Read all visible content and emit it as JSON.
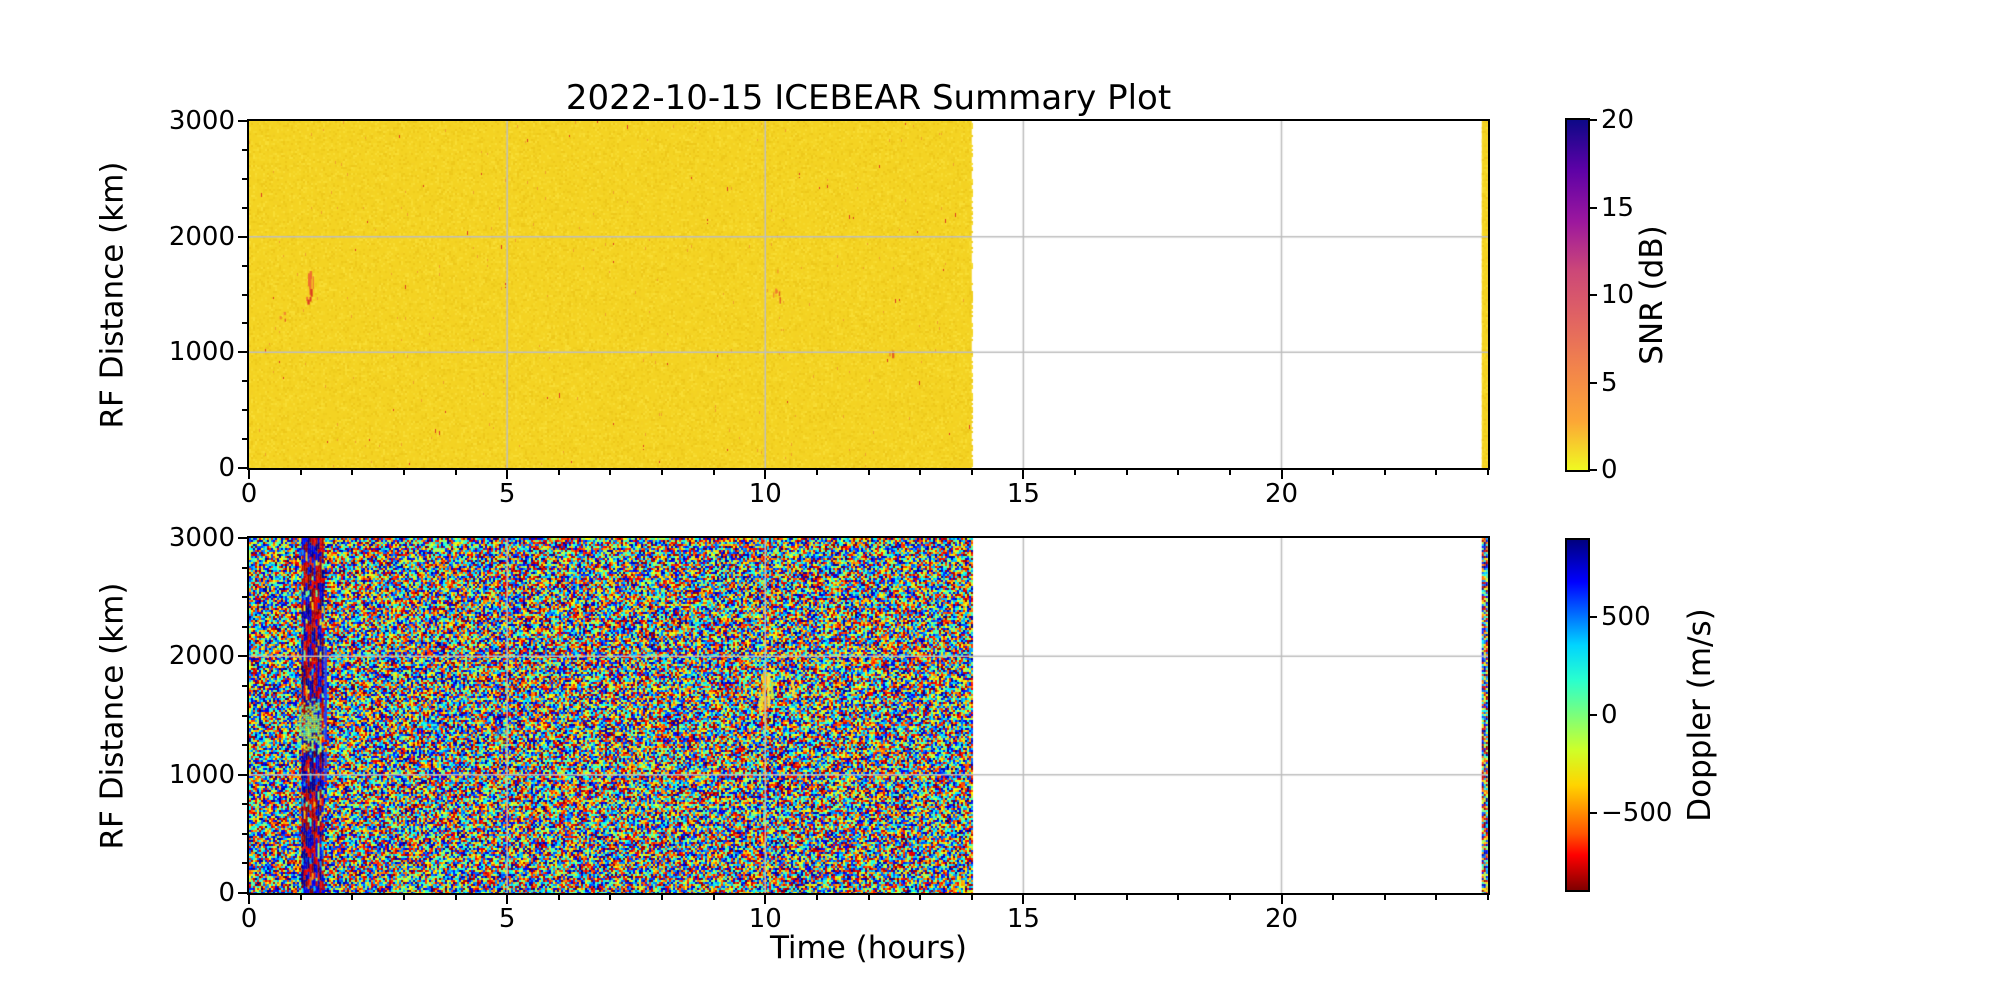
{
  "figure": {
    "title": "2022-10-15 ICEBEAR Summary Plot",
    "background_color": "#ffffff",
    "grid_color": "#bdbdbd",
    "spine_color": "#000000"
  },
  "chart_data": [
    {
      "type": "heatmap",
      "name": "snr-range-time-intensity",
      "title": "2022-10-15 ICEBEAR Summary Plot",
      "xlabel": "",
      "ylabel": "RF Distance (km)",
      "xlim": [
        0,
        24
      ],
      "ylim": [
        0,
        3000
      ],
      "xtick_values": [
        0,
        5,
        10,
        15,
        20
      ],
      "xtick_labels": [
        "0",
        "5",
        "10",
        "15",
        "20"
      ],
      "x_minor_step": 1,
      "ytick_values": [
        0,
        1000,
        2000,
        3000
      ],
      "ytick_labels": [
        "0",
        "1000",
        "2000",
        "3000"
      ],
      "y_minor_step": 250,
      "grid": true,
      "colorbar": {
        "label": "SNR (dB)",
        "colormap": "plasma_r",
        "range": [
          0,
          20
        ],
        "tick_values": [
          20,
          15,
          10,
          5,
          0
        ],
        "tick_labels": [
          "20",
          "15",
          "10",
          "5",
          "0"
        ],
        "gradient_top_to_bottom": [
          "#0d0887 0%",
          "#5c01a6 14%",
          "#9c179e 29%",
          "#cc4778 43%",
          "#e16462 57%",
          "#f2844b 71%",
          "#fca636 86%",
          "#f0f921 100%"
        ]
      },
      "data_coverage": {
        "start_hour": 0,
        "end_hour": 14,
        "right_edge_strip_hours": [
          23.88,
          24
        ]
      },
      "background_snr_db": 0,
      "noise": {
        "base_color": "#f4d322",
        "variant_colors": [
          "#f6d92c",
          "#efcd1d",
          "#f3d124",
          "#f8dd33",
          "#eec81a",
          "#f5d626"
        ],
        "orange_speck_color": "#ef9f2e",
        "red_speck_color": "#dd3b22",
        "orange_speck_p": 0.003,
        "red_speck_p": 0.0012
      },
      "features": {
        "red_streaks": [
          {
            "t": 1.18,
            "rf": [
              1350,
              1720
            ],
            "count": 9,
            "faint": false
          },
          {
            "t": 0.62,
            "rf": [
              1250,
              1380
            ],
            "count": 3,
            "faint": true
          },
          {
            "t": 10.2,
            "rf": [
              1430,
              1760
            ],
            "count": 6,
            "faint": true
          },
          {
            "t": 12.4,
            "rf": [
              900,
              1050
            ],
            "count": 2,
            "faint": true
          }
        ]
      }
    },
    {
      "type": "heatmap",
      "name": "doppler-range-time-intensity",
      "title": "",
      "xlabel": "Time (hours)",
      "ylabel": "RF Distance (km)",
      "xlim": [
        0,
        24
      ],
      "ylim": [
        0,
        3000
      ],
      "xtick_values": [
        0,
        5,
        10,
        15,
        20
      ],
      "xtick_labels": [
        "0",
        "5",
        "10",
        "15",
        "20"
      ],
      "x_minor_step": 1,
      "ytick_values": [
        0,
        1000,
        2000,
        3000
      ],
      "ytick_labels": [
        "0",
        "1000",
        "2000",
        "3000"
      ],
      "y_minor_step": 250,
      "grid": true,
      "colorbar": {
        "label": "Doppler (m/s)",
        "colormap": "jet_r",
        "range": [
          -890,
          890
        ],
        "tick_values": [
          500,
          0,
          -500
        ],
        "tick_labels": [
          "500",
          "0",
          "−500"
        ],
        "gradient_top_to_bottom": [
          "#00007f 0%",
          "#0000ff 12%",
          "#00d4ff 30%",
          "#29ffce 40%",
          "#7bff7b 50%",
          "#ceff29 60%",
          "#ffd400 70%",
          "#ff5400 84%",
          "#ff0000 90%",
          "#7f0000 100%"
        ]
      },
      "data_coverage": {
        "start_hour": 0,
        "end_hour": 14,
        "right_edge_strip_hours": [
          23.88,
          24
        ]
      },
      "noise_description": "uniform speckle noise spanning the full jet_r Doppler color range",
      "features": {
        "disturbance_stripe": {
          "t_range": [
            1.02,
            1.42
          ]
        },
        "blue_line": {
          "t": 1.46,
          "rf_range": [
            1050,
            2080
          ],
          "color": "#2a3cf0"
        },
        "primary_blob": {
          "t_center": 1.16,
          "rf_center": 1420,
          "t_radius": 0.3,
          "rf_radius": 240,
          "doppler": "near zero (green-cyan)"
        },
        "faint_blob": {
          "t_center": 4.87,
          "rf_center": 1330,
          "t_radius": 0.17,
          "rf_radius": 110
        },
        "streaks": [
          {
            "t": 9.88,
            "rf": [
              1490,
              1740
            ],
            "color": "#e6ea3e"
          },
          {
            "t": 9.94,
            "rf": [
              1540,
              1830
            ],
            "color": "#ffd21e"
          },
          {
            "t": 9.99,
            "rf": [
              1400,
              1905
            ],
            "color": "#ff9c16"
          },
          {
            "t": 10.05,
            "rf": [
              1580,
              1860
            ],
            "color": "#ffe243"
          },
          {
            "t": 10.1,
            "rf": [
              1660,
              1780
            ],
            "color": "#cfe636"
          },
          {
            "t": 10.52,
            "rf": [
              1665,
              1800
            ],
            "color": "#ffdf2e"
          }
        ]
      }
    }
  ]
}
